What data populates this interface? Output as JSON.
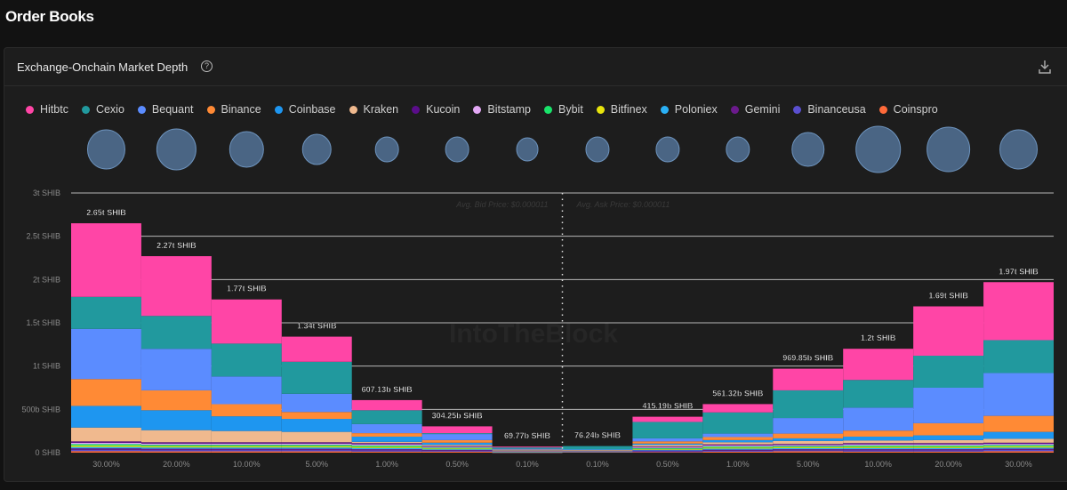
{
  "page": {
    "title": "Order Books"
  },
  "card": {
    "title": "Exchange-Onchain Market Depth",
    "help_icon": "question-circle-icon",
    "download_icon": "download-icon"
  },
  "watermark": "IntoTheBlock",
  "chart_data": {
    "type": "bar",
    "stacked": true,
    "title": "Exchange-Onchain Market Depth",
    "categories": [
      "30.00%",
      "20.00%",
      "10.00%",
      "5.00%",
      "1.00%",
      "0.50%",
      "0.10%",
      "0.10%",
      "0.50%",
      "1.00%",
      "5.00%",
      "10.00%",
      "20.00%",
      "30.00%"
    ],
    "sides": [
      "bid",
      "bid",
      "bid",
      "bid",
      "bid",
      "bid",
      "bid",
      "ask",
      "ask",
      "ask",
      "ask",
      "ask",
      "ask",
      "ask"
    ],
    "unit": "billion SHIB",
    "ylim": [
      0,
      3000
    ],
    "yticks": [
      {
        "value": 0,
        "label": "0 SHIB"
      },
      {
        "value": 500,
        "label": "500b SHIB"
      },
      {
        "value": 1000,
        "label": "1t SHIB"
      },
      {
        "value": 1500,
        "label": "1.5t SHIB"
      },
      {
        "value": 2000,
        "label": "2t SHIB"
      },
      {
        "value": 2500,
        "label": "2.5t SHIB"
      },
      {
        "value": 3000,
        "label": "3t SHIB"
      }
    ],
    "grid": true,
    "legend_placement": "top-left",
    "totals": [
      2650,
      2270,
      1770,
      1340,
      607.13,
      304.25,
      69.77,
      76.24,
      415.19,
      561.32,
      969.85,
      1200,
      1690,
      1970
    ],
    "total_labels": [
      "2.65t SHIB",
      "2.27t SHIB",
      "1.77t SHIB",
      "1.34t SHIB",
      "607.13b SHIB",
      "304.25b SHIB",
      "69.77b SHIB",
      "76.24b SHIB",
      "415.19b SHIB",
      "561.32b SHIB",
      "969.85b SHIB",
      "1.2t SHIB",
      "1.69t SHIB",
      "1.97t SHIB"
    ],
    "annotations": {
      "bid": "Avg. Bid Price: $0.000011",
      "ask": "Avg. Ask Price: $0.000011"
    },
    "bubble_sizes": [
      21,
      22,
      19,
      16,
      13,
      13,
      12,
      13,
      13,
      13,
      18,
      25,
      24,
      21
    ],
    "series": [
      {
        "name": "Hitbtc",
        "color": "#ff45a6",
        "values": [
          850,
          690,
          510,
          290,
          117,
          79,
          10,
          0,
          60,
          96,
          250,
          360,
          570,
          670
        ]
      },
      {
        "name": "Cexio",
        "color": "#21999e",
        "values": [
          370,
          380,
          380,
          370,
          160,
          10,
          15,
          40,
          190,
          245,
          320,
          320,
          370,
          380
        ]
      },
      {
        "name": "Bequant",
        "color": "#5b8cff",
        "values": [
          580,
          480,
          320,
          210,
          105,
          70,
          10,
          5,
          35,
          40,
          180,
          265,
          410,
          495
        ]
      },
      {
        "name": "Binance",
        "color": "#ff8a35",
        "values": [
          310,
          230,
          140,
          80,
          40,
          30,
          10,
          3,
          25,
          35,
          55,
          70,
          140,
          185
        ]
      },
      {
        "name": "Coinbase",
        "color": "#1e96f0",
        "values": [
          250,
          230,
          170,
          150,
          60,
          25,
          5,
          3,
          15,
          25,
          30,
          45,
          55,
          80
        ]
      },
      {
        "name": "Kraken",
        "color": "#f0b98e",
        "values": [
          160,
          140,
          130,
          120,
          15,
          15,
          5,
          5,
          20,
          25,
          35,
          30,
          35,
          45
        ]
      },
      {
        "name": "Kucoin",
        "color": "#5a0d8a",
        "values": [
          16,
          15,
          15,
          15,
          14,
          9,
          2,
          2,
          9,
          12,
          12,
          14,
          14,
          14
        ]
      },
      {
        "name": "Bitstamp",
        "color": "#e3a8f5",
        "values": [
          16,
          15,
          15,
          15,
          14,
          9,
          2,
          2,
          9,
          12,
          12,
          14,
          14,
          14
        ]
      },
      {
        "name": "Bybit",
        "color": "#19e36a",
        "values": [
          16,
          15,
          15,
          15,
          14,
          9,
          2,
          2,
          9,
          12,
          12,
          14,
          14,
          14
        ]
      },
      {
        "name": "Bitfinex",
        "color": "#e8e40c",
        "values": [
          16,
          15,
          15,
          15,
          14,
          9,
          2,
          2,
          9,
          12,
          12,
          14,
          14,
          14
        ]
      },
      {
        "name": "Poloniex",
        "color": "#2ab0f5",
        "values": [
          16,
          15,
          15,
          15,
          14,
          9,
          2,
          2,
          9,
          12,
          12,
          14,
          14,
          14
        ]
      },
      {
        "name": "Gemini",
        "color": "#6b1a8c",
        "values": [
          16,
          15,
          15,
          15,
          14,
          9,
          2,
          2,
          9,
          12,
          12,
          14,
          14,
          14
        ]
      },
      {
        "name": "Binanceusa",
        "color": "#5a4fcf",
        "values": [
          16,
          15,
          15,
          15,
          14,
          9,
          2,
          2,
          9,
          12,
          12,
          14,
          14,
          14
        ]
      },
      {
        "name": "Coinspro",
        "color": "#ff6a3a",
        "values": [
          18,
          15,
          15,
          15,
          12,
          12,
          1,
          6,
          7,
          11,
          16,
          12,
          12,
          17
        ]
      }
    ]
  }
}
